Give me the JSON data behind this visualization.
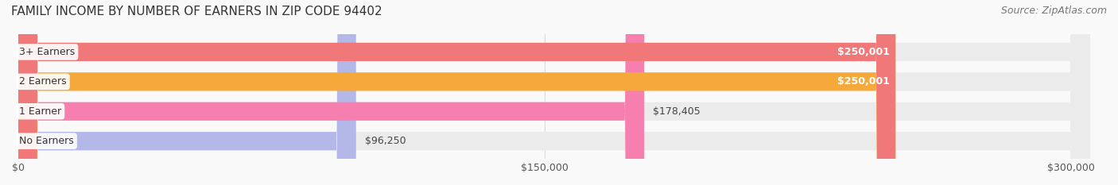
{
  "title": "FAMILY INCOME BY NUMBER OF EARNERS IN ZIP CODE 94402",
  "source": "Source: ZipAtlas.com",
  "categories": [
    "No Earners",
    "1 Earner",
    "2 Earners",
    "3+ Earners"
  ],
  "values": [
    96250,
    178405,
    250001,
    250001
  ],
  "bar_colors": [
    "#b3b8e8",
    "#f77fb0",
    "#f5a93a",
    "#f07878"
  ],
  "bar_bg_color": "#ebebeb",
  "value_labels": [
    "$96,250",
    "$178,405",
    "$250,001",
    "$250,001"
  ],
  "label_colors": [
    "#555555",
    "#555555",
    "#ffffff",
    "#ffffff"
  ],
  "x_ticks": [
    0,
    150000,
    300000
  ],
  "x_tick_labels": [
    "$0",
    "$150,000",
    "$300,000"
  ],
  "xlim": [
    0,
    310000
  ],
  "background_color": "#f9f9f9",
  "title_fontsize": 11,
  "source_fontsize": 9,
  "bar_label_fontsize": 9,
  "tick_fontsize": 9,
  "category_fontsize": 9
}
